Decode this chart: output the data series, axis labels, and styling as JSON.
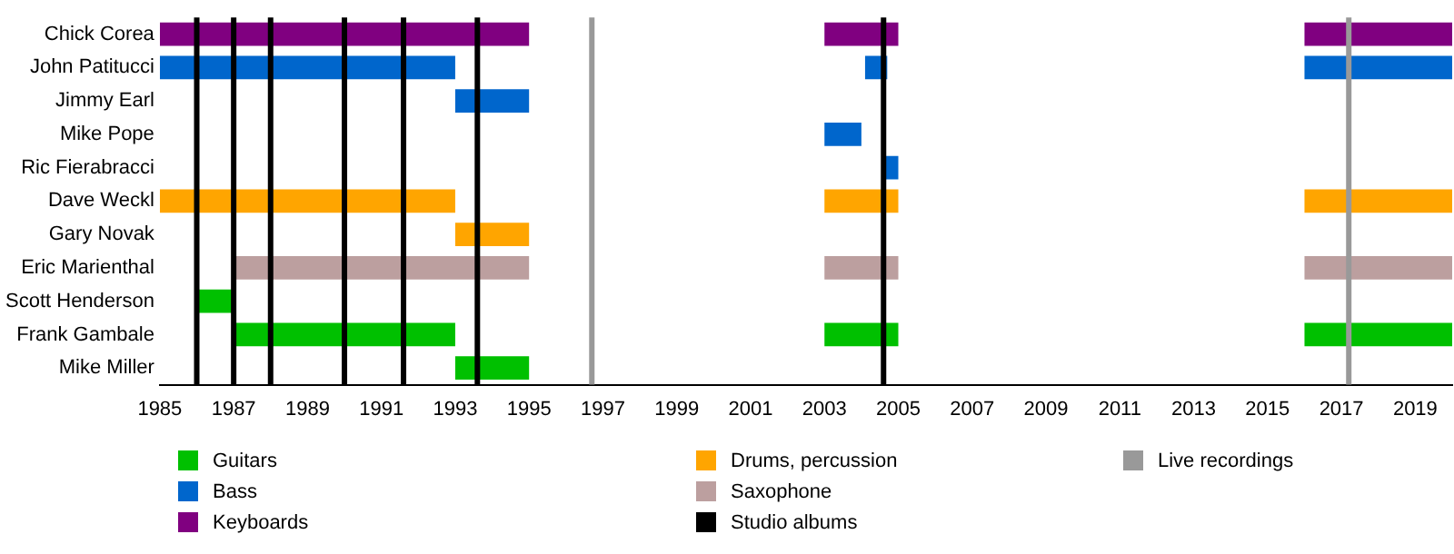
{
  "chart_data": {
    "type": "bar",
    "orientation": "horizontal",
    "legend": "bottom",
    "grid": false,
    "categories": [
      "Chick Corea",
      "John Patitucci",
      "Jimmy Earl",
      "Mike Pope",
      "Ric Fierabracci",
      "Dave Weckl",
      "Gary Novak",
      "Eric Marienthal",
      "Scott Henderson",
      "Frank Gambale",
      "Mike Miller"
    ],
    "xlim": [
      1985,
      2020
    ],
    "xticks": [
      1985,
      1987,
      1989,
      1991,
      1993,
      1995,
      1997,
      1999,
      2001,
      2003,
      2005,
      2007,
      2009,
      2011,
      2013,
      2015,
      2017,
      2019
    ],
    "series": [
      {
        "name": "Guitars",
        "color": "#00c000",
        "base": [
          null,
          null,
          null,
          null,
          null,
          null,
          null,
          null,
          1986,
          1987,
          1993
        ],
        "values": [
          null,
          null,
          null,
          null,
          null,
          null,
          null,
          null,
          1,
          6,
          2
        ]
      },
      {
        "color": "#00c000",
        "base": [
          null,
          null,
          null,
          null,
          null,
          null,
          null,
          null,
          null,
          2003,
          null
        ],
        "values": [
          null,
          null,
          null,
          null,
          null,
          null,
          null,
          null,
          null,
          2,
          null
        ]
      },
      {
        "color": "#00c000",
        "base": [
          null,
          null,
          null,
          null,
          null,
          null,
          null,
          null,
          null,
          2016,
          null
        ],
        "values": [
          null,
          null,
          null,
          null,
          null,
          null,
          null,
          null,
          null,
          4,
          null
        ]
      },
      {
        "name": "Bass",
        "color": "#0066cc",
        "base": [
          null,
          1985,
          1993,
          2003,
          2004.6,
          null,
          null,
          null,
          null,
          null,
          null
        ],
        "values": [
          null,
          8,
          2,
          1,
          0.4,
          null,
          null,
          null,
          null,
          null,
          null
        ]
      },
      {
        "color": "#0066cc",
        "base": [
          null,
          2004.1,
          null,
          null,
          null,
          null,
          null,
          null,
          null,
          null,
          null
        ],
        "values": [
          null,
          0.6,
          null,
          null,
          null,
          null,
          null,
          null,
          null,
          null,
          null
        ]
      },
      {
        "color": "#0066cc",
        "base": [
          null,
          2016,
          null,
          null,
          null,
          null,
          null,
          null,
          null,
          null,
          null
        ],
        "values": [
          null,
          4,
          null,
          null,
          null,
          null,
          null,
          null,
          null,
          null,
          null
        ]
      },
      {
        "name": "Keyboards",
        "color": "#800080",
        "base": [
          1985,
          null,
          null,
          null,
          null,
          null,
          null,
          null,
          null,
          null,
          null
        ],
        "values": [
          10,
          null,
          null,
          null,
          null,
          null,
          null,
          null,
          null,
          null,
          null
        ]
      },
      {
        "color": "#800080",
        "base": [
          2003,
          null,
          null,
          null,
          null,
          null,
          null,
          null,
          null,
          null,
          null
        ],
        "values": [
          2,
          null,
          null,
          null,
          null,
          null,
          null,
          null,
          null,
          null,
          null
        ]
      },
      {
        "color": "#800080",
        "base": [
          2016,
          null,
          null,
          null,
          null,
          null,
          null,
          null,
          null,
          null,
          null
        ],
        "values": [
          4,
          null,
          null,
          null,
          null,
          null,
          null,
          null,
          null,
          null,
          null
        ]
      },
      {
        "name": "Drums, percussion",
        "color": "#ffa500",
        "base": [
          null,
          null,
          null,
          null,
          null,
          1985,
          1993,
          null,
          null,
          null,
          null
        ],
        "values": [
          null,
          null,
          null,
          null,
          null,
          8,
          2,
          null,
          null,
          null,
          null
        ]
      },
      {
        "color": "#ffa500",
        "base": [
          null,
          null,
          null,
          null,
          null,
          2003,
          null,
          null,
          null,
          null,
          null
        ],
        "values": [
          null,
          null,
          null,
          null,
          null,
          2,
          null,
          null,
          null,
          null,
          null
        ]
      },
      {
        "color": "#ffa500",
        "base": [
          null,
          null,
          null,
          null,
          null,
          2016,
          null,
          null,
          null,
          null,
          null
        ],
        "values": [
          null,
          null,
          null,
          null,
          null,
          4,
          null,
          null,
          null,
          null,
          null
        ]
      },
      {
        "name": "Saxophone",
        "color": "#bc9f9f",
        "base": [
          null,
          null,
          null,
          null,
          null,
          null,
          null,
          1987,
          null,
          null,
          null
        ],
        "values": [
          null,
          null,
          null,
          null,
          null,
          null,
          null,
          8,
          null,
          null,
          null
        ]
      },
      {
        "color": "#bc9f9f",
        "base": [
          null,
          null,
          null,
          null,
          null,
          null,
          null,
          2003,
          null,
          null,
          null
        ],
        "values": [
          null,
          null,
          null,
          null,
          null,
          null,
          null,
          2,
          null,
          null,
          null
        ]
      },
      {
        "color": "#bc9f9f",
        "base": [
          null,
          null,
          null,
          null,
          null,
          null,
          null,
          2016,
          null,
          null,
          null
        ],
        "values": [
          null,
          null,
          null,
          null,
          null,
          null,
          null,
          4,
          null,
          null,
          null
        ]
      }
    ],
    "ref_lines": [
      {
        "axis": "x",
        "value": 1986,
        "label": "Studio albums",
        "color": "#000000"
      },
      {
        "axis": "x",
        "value": 1987,
        "color": "#000000"
      },
      {
        "axis": "x",
        "value": 1988,
        "color": "#000000"
      },
      {
        "axis": "x",
        "value": 1990,
        "color": "#000000"
      },
      {
        "axis": "x",
        "value": 1991.6,
        "color": "#000000"
      },
      {
        "axis": "x",
        "value": 1993.6,
        "color": "#000000"
      },
      {
        "axis": "x",
        "value": 2004.6,
        "color": "#000000"
      },
      {
        "axis": "x",
        "value": 1996.7,
        "label": "Live recordings",
        "color": "#999999"
      },
      {
        "axis": "x",
        "value": 2017.2,
        "color": "#999999"
      }
    ]
  }
}
